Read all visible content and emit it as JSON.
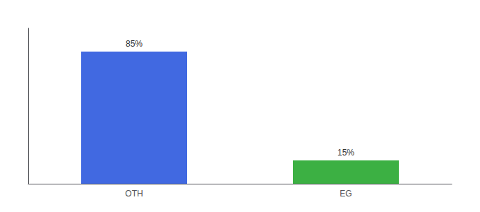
{
  "chart_data": {
    "type": "bar",
    "categories": [
      "OTH",
      "EG"
    ],
    "values": [
      85,
      15
    ],
    "value_labels": [
      "85%",
      "15%"
    ],
    "colors": [
      "#4169e1",
      "#3cb043"
    ],
    "ylim": [
      0,
      100
    ],
    "grid": false,
    "data_labels": true,
    "tick_labels": "x"
  }
}
